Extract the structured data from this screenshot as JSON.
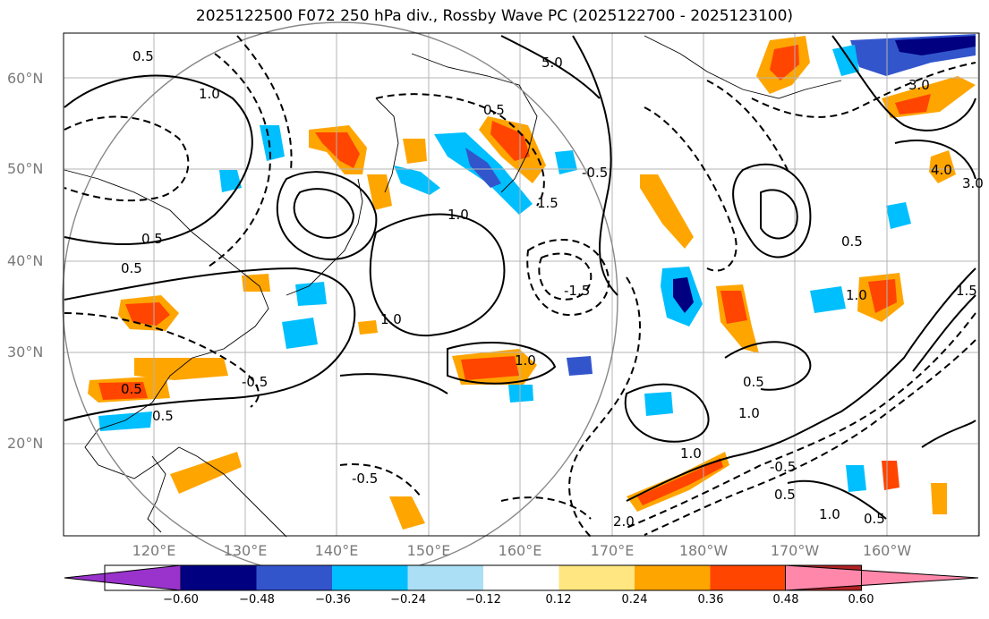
{
  "title": "2025122500 F072 250 hPa div., Rossby Wave PC (2025122700 - 2025123100)",
  "lat_labels": [
    "60°N",
    "50°N",
    "40°N",
    "30°N",
    "20°N"
  ],
  "lon_labels": [
    "120°E",
    "130°E",
    "140°E",
    "150°E",
    "160°E",
    "170°E",
    "180°W",
    "170°W",
    "160°W"
  ],
  "colorbar": {
    "tick_labels": [
      "−0.60",
      "−0.48",
      "−0.36",
      "−0.24",
      "−0.12",
      "0.12",
      "0.24",
      "0.36",
      "0.48",
      "0.60"
    ],
    "colors": [
      "#9933cc",
      "#000080",
      "#3355cc",
      "#00bfff",
      "#aadff5",
      "#ffffff",
      "#ffe680",
      "#ffa500",
      "#ff4500",
      "#b22222",
      "#ff88aa"
    ]
  },
  "contour_labels": [
    "0.5",
    "1.0",
    "1.5",
    "2.0",
    "3.0",
    "4.0",
    "5.0",
    "-0.5",
    "-1.5"
  ],
  "styles": {
    "grid_color": "#b4b4b4",
    "circle_color": "#888888",
    "contour_color": "#000000",
    "land_color": "#000000"
  }
}
